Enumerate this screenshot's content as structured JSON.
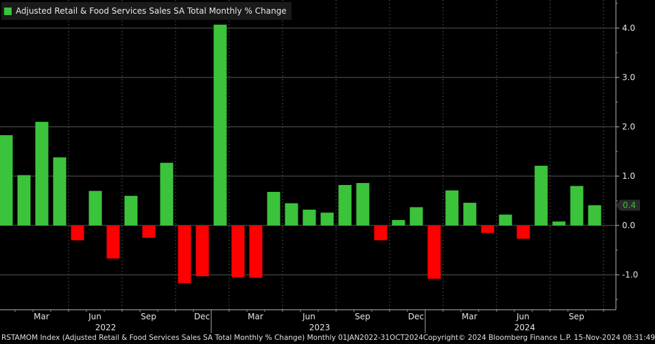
{
  "chart_data": {
    "type": "bar",
    "title": "Adjusted Retail & Food Services Sales SA Total Monthly % Change",
    "categories": [
      "Jan 2022",
      "Feb 2022",
      "Mar 2022",
      "Apr 2022",
      "May 2022",
      "Jun 2022",
      "Jul 2022",
      "Aug 2022",
      "Sep 2022",
      "Oct 2022",
      "Nov 2022",
      "Dec 2022",
      "Jan 2023",
      "Feb 2023",
      "Mar 2023",
      "Apr 2023",
      "May 2023",
      "Jun 2023",
      "Jul 2023",
      "Aug 2023",
      "Sep 2023",
      "Oct 2023",
      "Nov 2023",
      "Dec 2023",
      "Jan 2024",
      "Feb 2024",
      "Mar 2024",
      "Apr 2024",
      "May 2024",
      "Jun 2024",
      "Jul 2024",
      "Aug 2024",
      "Sep 2024",
      "Oct 2024"
    ],
    "values": [
      1.83,
      1.02,
      2.1,
      1.38,
      -0.3,
      0.7,
      -0.67,
      0.6,
      -0.25,
      1.27,
      -1.17,
      -1.03,
      4.07,
      -1.05,
      -1.06,
      0.68,
      0.45,
      0.32,
      0.26,
      0.82,
      0.86,
      -0.3,
      0.11,
      0.37,
      -1.08,
      0.71,
      0.46,
      -0.15,
      0.22,
      -0.27,
      1.21,
      0.08,
      0.8,
      0.41
    ],
    "ylim": [
      -1.6,
      4.5
    ],
    "yticks": [
      -1.0,
      0.0,
      1.0,
      2.0,
      3.0,
      4.0
    ],
    "ytick_labels": [
      "-1.0",
      "0.0",
      "1.0",
      "2.0",
      "3.0",
      "4.0"
    ],
    "xticks": [
      {
        "index": 2,
        "label": "Mar"
      },
      {
        "index": 5,
        "label": "Jun"
      },
      {
        "index": 8,
        "label": "Sep"
      },
      {
        "index": 11,
        "label": "Dec"
      },
      {
        "index": 14,
        "label": "Mar"
      },
      {
        "index": 17,
        "label": "Jun"
      },
      {
        "index": 20,
        "label": "Sep"
      },
      {
        "index": 23,
        "label": "Dec"
      },
      {
        "index": 26,
        "label": "Mar"
      },
      {
        "index": 29,
        "label": "Jun"
      },
      {
        "index": 32,
        "label": "Sep"
      }
    ],
    "year_labels": [
      {
        "index": 5.5,
        "label": "2022"
      },
      {
        "index": 17.5,
        "label": "2023"
      },
      {
        "index": 29,
        "label": "2024"
      }
    ],
    "last_value_label": "0.4",
    "positive_color": "#3cc33c",
    "negative_color": "#ff0000",
    "label_color": "#3cc33c",
    "grid": true,
    "legend": "top-left",
    "xlabel": "",
    "ylabel": ""
  },
  "footer": {
    "left": "RSTAMOM Index (Adjusted Retail & Food Services Sales SA Total Monthly % Change)  Monthly 01JAN2022-31OCT2024",
    "right": "Copyright© 2024 Bloomberg Finance L.P.  15-Nov-2024 08:31:49"
  }
}
